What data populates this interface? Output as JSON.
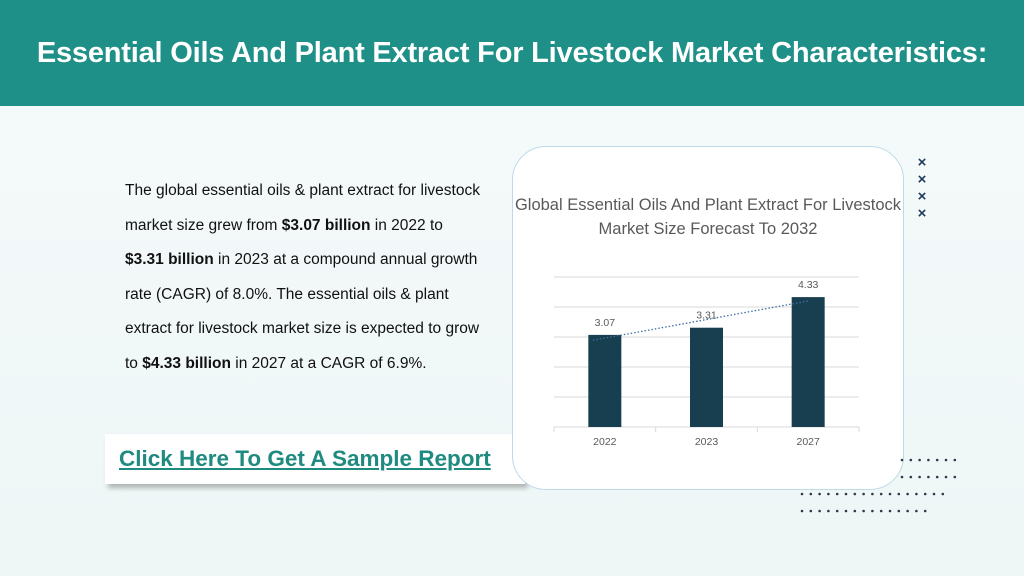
{
  "header": {
    "title": "Essential Oils And Plant Extract For Livestock Market Characteristics:"
  },
  "body": {
    "p1": "The global essential oils & plant extract for livestock market size grew from ",
    "b1": "$3.07 billion",
    "p2": " in 2022 to ",
    "b2": "$3.31 billion",
    "p3": " in 2023 at a compound annual growth rate (CAGR) of 8.0%. The essential oils & plant extract for livestock market size is expected to grow to ",
    "b3": "$4.33 billion",
    "p4": " in 2027 at a CAGR of 6.9%."
  },
  "cta": {
    "label": "Click Here To Get A Sample Report"
  },
  "decor": {
    "x_mark": "×"
  },
  "chart_data": {
    "type": "bar",
    "title": "Global Essential Oils And Plant Extract For Livestock Market Size Forecast To 2032",
    "categories": [
      "2022",
      "2023",
      "2027"
    ],
    "values": [
      3.07,
      3.31,
      4.33
    ],
    "data_labels": [
      "3.07",
      "3.31",
      "4.33"
    ],
    "ylim": [
      0,
      5
    ],
    "grid": true,
    "trendline": true,
    "colors": {
      "bar": "#173f4f",
      "trend": "#3c6ea0",
      "grid": "#d9d9d9",
      "label": "#595959"
    }
  }
}
